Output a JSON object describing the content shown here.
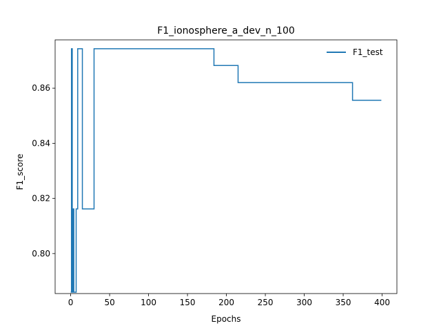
{
  "chart_data": {
    "type": "line",
    "title": "F1_ionosphere_a_dev_n_100",
    "xlabel": "Epochs",
    "ylabel": "F1_score",
    "xlim": [
      -20,
      419
    ],
    "ylim": [
      0.7855,
      0.8775
    ],
    "xticks": [
      0,
      50,
      100,
      150,
      200,
      250,
      300,
      350,
      400
    ],
    "xtick_labels": [
      "0",
      "50",
      "100",
      "150",
      "200",
      "250",
      "300",
      "350",
      "400"
    ],
    "yticks": [
      0.8,
      0.82,
      0.84,
      0.86
    ],
    "ytick_labels": [
      "0.80",
      "0.82",
      "0.84",
      "0.86"
    ],
    "grid": false,
    "legend": {
      "position": "top-right"
    },
    "series": [
      {
        "name": "F1_test",
        "color": "#1f77b4",
        "x": [
          0,
          1,
          1,
          2,
          2,
          3,
          3,
          4,
          4,
          6,
          6,
          7,
          7,
          8,
          8,
          9,
          9,
          10,
          10,
          15,
          15,
          16,
          16,
          30,
          30,
          184,
          184,
          215,
          215,
          362,
          362,
          399
        ],
        "y": [
          0.786,
          0.786,
          0.8743,
          0.8743,
          0.786,
          0.786,
          0.8162,
          0.8162,
          0.786,
          0.786,
          0.786,
          0.786,
          0.8162,
          0.8162,
          0.8162,
          0.8162,
          0.8743,
          0.8743,
          0.8743,
          0.8743,
          0.8162,
          0.8162,
          0.8162,
          0.8162,
          0.8743,
          0.8743,
          0.8682,
          0.8682,
          0.862,
          0.862,
          0.8556,
          0.8556
        ]
      }
    ]
  }
}
